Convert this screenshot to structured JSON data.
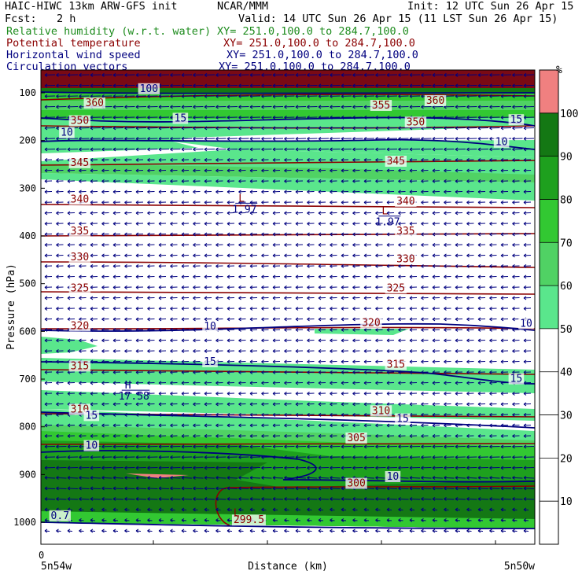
{
  "header": {
    "model": "HAIC-HIWC 13km ARW-GFS init",
    "org": "NCAR/MMM",
    "init": "Init: 12 UTC Sun 26 Apr 15",
    "fcst_label": "Fcst:",
    "fcst_value": "2 h",
    "valid": "Valid: 14 UTC Sun 26 Apr 15 (11 LST Sun 26 Apr 15)",
    "fields": [
      {
        "name": "Relative humidity (w.r.t. water)",
        "xy": "XY= 251.0,100.0 to 284.7,100.0",
        "color": "#1e8c1e"
      },
      {
        "name": "Potential temperature",
        "xy": "XY= 251.0,100.0 to 284.7,100.0",
        "color": "#8b0000"
      },
      {
        "name": "Horizontal wind speed",
        "xy": "XY= 251.0,100.0 to 284.7,100.0",
        "color": "#00007f"
      },
      {
        "name": "Circulation vectors",
        "xy": "XY= 251.0,100.0 to 284.7,100.0",
        "color": "#00007f"
      }
    ]
  },
  "chart_data": {
    "type": "heatmap",
    "ylabel": "Pressure (hPa)",
    "xlabel": "Distance (km)",
    "x_start_label": "5n54w",
    "x_end_label": "5n50w",
    "x_zero": "0",
    "y_ticks": [
      100,
      200,
      300,
      400,
      500,
      600,
      700,
      800,
      900,
      1000
    ],
    "colorbar": {
      "unit": "%",
      "ticks": [
        10,
        20,
        30,
        40,
        50,
        60,
        70,
        80,
        90,
        100
      ],
      "bins": [
        {
          "from": 50,
          "to": 60,
          "color": "#5ae68c"
        },
        {
          "from": 60,
          "to": 70,
          "color": "#50d264"
        },
        {
          "from": 70,
          "to": 80,
          "color": "#32c832"
        },
        {
          "from": 80,
          "to": 90,
          "color": "#1ea01e"
        },
        {
          "from": 90,
          "to": 100,
          "color": "#147814"
        },
        {
          "from": 100,
          "to": 110,
          "color": "#f08080"
        }
      ]
    },
    "theta_labels": [
      {
        "text": "360",
        "x": 0.09,
        "p": 128
      },
      {
        "text": "360",
        "x": 0.78,
        "p": 123
      },
      {
        "text": "355",
        "x": 0.67,
        "p": 133
      },
      {
        "text": "350",
        "x": 0.06,
        "p": 165
      },
      {
        "text": "350",
        "x": 0.74,
        "p": 168
      },
      {
        "text": "345",
        "x": 0.06,
        "p": 253
      },
      {
        "text": "345",
        "x": 0.7,
        "p": 250
      },
      {
        "text": "340",
        "x": 0.06,
        "p": 330
      },
      {
        "text": "340",
        "x": 0.72,
        "p": 334
      },
      {
        "text": "335",
        "x": 0.06,
        "p": 397
      },
      {
        "text": "335",
        "x": 0.72,
        "p": 397
      },
      {
        "text": "330",
        "x": 0.06,
        "p": 451
      },
      {
        "text": "330",
        "x": 0.72,
        "p": 455
      },
      {
        "text": "325",
        "x": 0.06,
        "p": 516
      },
      {
        "text": "325",
        "x": 0.7,
        "p": 516
      },
      {
        "text": "320",
        "x": 0.06,
        "p": 595
      },
      {
        "text": "320",
        "x": 0.65,
        "p": 589
      },
      {
        "text": "315",
        "x": 0.06,
        "p": 679
      },
      {
        "text": "315",
        "x": 0.7,
        "p": 676
      },
      {
        "text": "310",
        "x": 0.06,
        "p": 770
      },
      {
        "text": "310",
        "x": 0.67,
        "p": 773
      },
      {
        "text": "305",
        "x": 0.62,
        "p": 830
      },
      {
        "text": "300",
        "x": 0.62,
        "p": 925
      },
      {
        "text": "299.5",
        "x": 0.39,
        "p": 1002
      }
    ],
    "speed_labels": [
      {
        "text": "15",
        "x": 0.27,
        "p": 160
      },
      {
        "text": "15",
        "x": 0.95,
        "p": 163
      },
      {
        "text": "10",
        "x": 0.04,
        "p": 190
      },
      {
        "text": "10",
        "x": 0.92,
        "p": 210
      },
      {
        "text": "10",
        "x": 0.33,
        "p": 596
      },
      {
        "text": "10",
        "x": 0.97,
        "p": 590
      },
      {
        "text": "15",
        "x": 0.33,
        "p": 670
      },
      {
        "text": "15",
        "x": 0.95,
        "p": 706
      },
      {
        "text": "15",
        "x": 0.09,
        "p": 783
      },
      {
        "text": "15",
        "x": 0.72,
        "p": 790
      },
      {
        "text": "10",
        "x": 0.09,
        "p": 846
      },
      {
        "text": "10",
        "x": 0.7,
        "p": 911
      },
      {
        "text": "0.7",
        "x": 0.02,
        "p": 993
      },
      {
        "text": "100",
        "x": 0.2,
        "p": 98
      }
    ],
    "extrema": [
      {
        "type": "L",
        "value": "1.97",
        "x": 0.4,
        "p": 328
      },
      {
        "type": "L",
        "value": "1.97",
        "x": 0.69,
        "p": 355
      },
      {
        "type": "H",
        "value": "17.58",
        "x": 0.17,
        "p": 720
      },
      {
        "type": "L",
        "value": "",
        "x": 0.39,
        "p": 988
      }
    ]
  }
}
